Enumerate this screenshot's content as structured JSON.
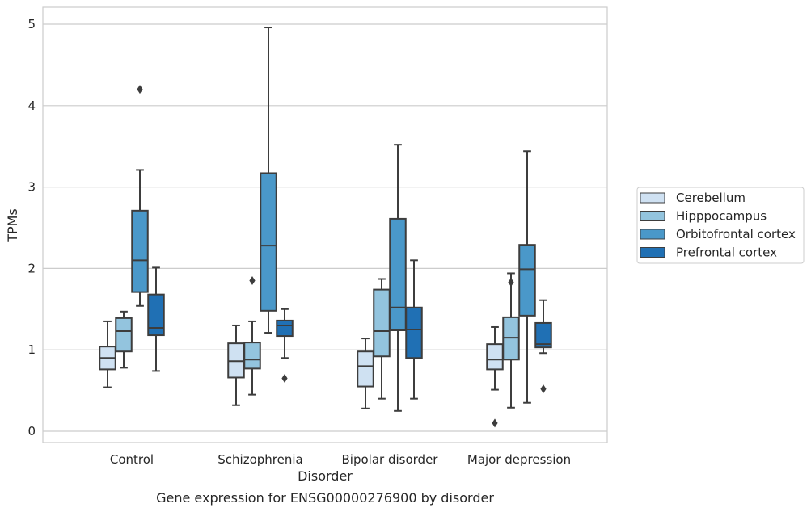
{
  "chart_data": {
    "type": "box",
    "title": "Gene expression for ENSG00000276900 by disorder",
    "xlabel": "Disorder",
    "ylabel": "TPMs",
    "ylim": [
      -0.13,
      5.22
    ],
    "yticks": [
      "0",
      "1",
      "2",
      "3",
      "4",
      "5"
    ],
    "grid": true,
    "legend_position": "right",
    "categories": [
      "Control",
      "Schizophrenia",
      "Bipolar disorder",
      "Major depression"
    ],
    "series": [
      {
        "name": "Cerebellum",
        "color": "#cfe1f2",
        "boxes": [
          {
            "whisker_low": 0.54,
            "q1": 0.76,
            "median": 0.9,
            "q3": 1.04,
            "whisker_high": 1.35,
            "outliers": []
          },
          {
            "whisker_low": 0.32,
            "q1": 0.66,
            "median": 0.86,
            "q3": 1.08,
            "whisker_high": 1.3,
            "outliers": []
          },
          {
            "whisker_low": 0.28,
            "q1": 0.55,
            "median": 0.8,
            "q3": 0.98,
            "whisker_high": 1.14,
            "outliers": []
          },
          {
            "whisker_low": 0.51,
            "q1": 0.76,
            "median": 0.88,
            "q3": 1.07,
            "whisker_high": 1.28,
            "outliers": [
              0.1
            ]
          }
        ]
      },
      {
        "name": "Hipppocampus",
        "color": "#93c4de",
        "boxes": [
          {
            "whisker_low": 0.78,
            "q1": 0.98,
            "median": 1.23,
            "q3": 1.39,
            "whisker_high": 1.47,
            "outliers": []
          },
          {
            "whisker_low": 0.45,
            "q1": 0.77,
            "median": 0.88,
            "q3": 1.09,
            "whisker_high": 1.35,
            "outliers": [
              1.85
            ]
          },
          {
            "whisker_low": 0.4,
            "q1": 0.92,
            "median": 1.23,
            "q3": 1.74,
            "whisker_high": 1.87,
            "outliers": []
          },
          {
            "whisker_low": 0.29,
            "q1": 0.88,
            "median": 1.15,
            "q3": 1.4,
            "whisker_high": 1.94,
            "outliers": [
              1.83
            ]
          }
        ]
      },
      {
        "name": "Orbitofrontal cortex",
        "color": "#4a98c9",
        "boxes": [
          {
            "whisker_low": 1.54,
            "q1": 1.71,
            "median": 2.1,
            "q3": 2.71,
            "whisker_high": 3.21,
            "outliers": [
              4.2
            ]
          },
          {
            "whisker_low": 1.21,
            "q1": 1.48,
            "median": 2.28,
            "q3": 3.17,
            "whisker_high": 4.96,
            "outliers": []
          },
          {
            "whisker_low": 0.25,
            "q1": 1.24,
            "median": 1.52,
            "q3": 2.61,
            "whisker_high": 3.52,
            "outliers": []
          },
          {
            "whisker_low": 0.35,
            "q1": 1.42,
            "median": 1.99,
            "q3": 2.29,
            "whisker_high": 3.44,
            "outliers": []
          }
        ]
      },
      {
        "name": "Prefrontal cortex",
        "color": "#2070b4",
        "boxes": [
          {
            "whisker_low": 0.74,
            "q1": 1.18,
            "median": 1.27,
            "q3": 1.68,
            "whisker_high": 2.01,
            "outliers": []
          },
          {
            "whisker_low": 0.9,
            "q1": 1.17,
            "median": 1.3,
            "q3": 1.36,
            "whisker_high": 1.5,
            "outliers": [
              0.65
            ]
          },
          {
            "whisker_low": 0.4,
            "q1": 0.9,
            "median": 1.25,
            "q3": 1.52,
            "whisker_high": 2.1,
            "outliers": []
          },
          {
            "whisker_low": 0.96,
            "q1": 1.03,
            "median": 1.07,
            "q3": 1.33,
            "whisker_high": 1.61,
            "outliers": [
              0.52
            ]
          }
        ]
      }
    ]
  }
}
